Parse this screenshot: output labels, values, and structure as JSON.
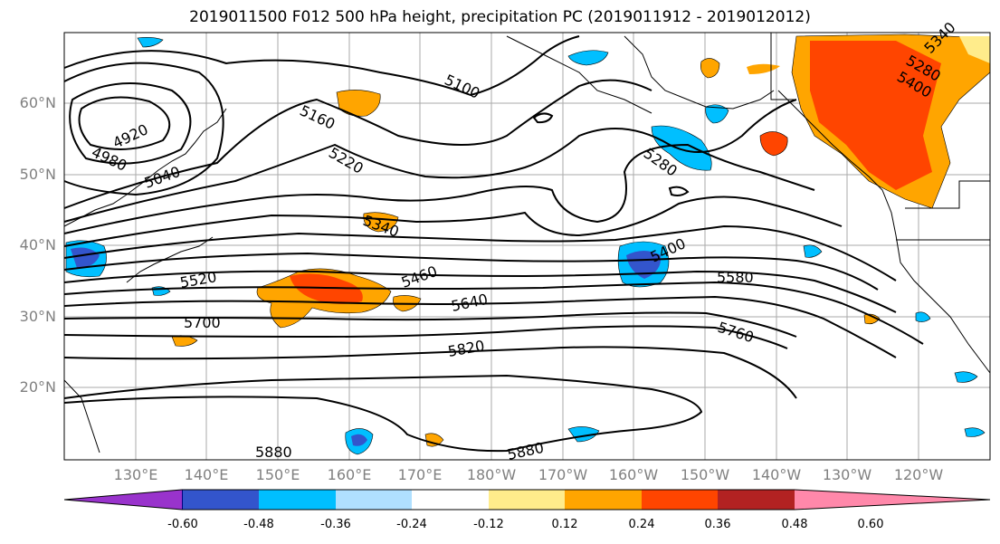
{
  "title": "2019011500 F012 500 hPa height, precipitation PC (2019011912 - 2019012012)",
  "lat_labels": [
    "60°N",
    "50°N",
    "40°N",
    "30°N",
    "20°N"
  ],
  "lon_labels": [
    "130°E",
    "140°E",
    "150°E",
    "160°E",
    "170°E",
    "180°W",
    "170°W",
    "160°W",
    "150°W",
    "140°W",
    "130°W",
    "120°W"
  ],
  "contour_labels": [
    "4920",
    "4980",
    "5040",
    "5100",
    "5160",
    "5220",
    "5280",
    "5340",
    "5400",
    "5460",
    "5520",
    "5580",
    "5640",
    "5700",
    "5760",
    "5820",
    "5880",
    "5880",
    "5340",
    "5280",
    "5400"
  ],
  "colorbar": {
    "colors": [
      "#9933cc",
      "#000080",
      "#3355cc",
      "#00bfff",
      "#b0e0ff",
      "#ffffff",
      "#ffec8b",
      "#ffa500",
      "#ff4500",
      "#b22222",
      "#ff88aa"
    ],
    "tick_labels": [
      "-0.60",
      "-0.48",
      "-0.36",
      "-0.24",
      "-0.12",
      "0.12",
      "0.24",
      "0.36",
      "0.48",
      "0.60"
    ]
  }
}
